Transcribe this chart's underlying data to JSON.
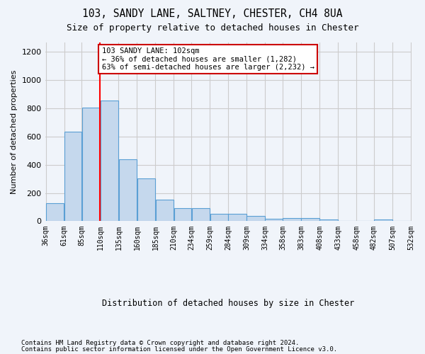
{
  "title": "103, SANDY LANE, SALTNEY, CHESTER, CH4 8UA",
  "subtitle": "Size of property relative to detached houses in Chester",
  "xlabel": "Distribution of detached houses by size in Chester",
  "ylabel": "Number of detached properties",
  "bar_color": "#c5d8ed",
  "bar_edge_color": "#5a9fd4",
  "background_color": "#f0f4fa",
  "grid_color": "#cccccc",
  "tick_labels": [
    "36sqm",
    "61sqm",
    "85sqm",
    "110sqm",
    "135sqm",
    "160sqm",
    "185sqm",
    "210sqm",
    "234sqm",
    "259sqm",
    "284sqm",
    "309sqm",
    "334sqm",
    "358sqm",
    "383sqm",
    "408sqm",
    "433sqm",
    "458sqm",
    "482sqm",
    "507sqm",
    "532sqm"
  ],
  "bar_lefts": [
    36,
    61,
    85,
    110,
    135,
    160,
    185,
    210,
    234,
    259,
    284,
    309,
    334,
    358,
    383,
    408,
    433,
    458,
    482,
    507
  ],
  "bar_widths": [
    25,
    24,
    25,
    25,
    25,
    25,
    25,
    24,
    25,
    25,
    25,
    25,
    24,
    25,
    25,
    25,
    25,
    24,
    25,
    25
  ],
  "bar_heights": [
    130,
    635,
    805,
    855,
    440,
    305,
    155,
    90,
    90,
    50,
    50,
    35,
    15,
    20,
    20,
    10,
    0,
    0,
    10,
    0
  ],
  "ylim": [
    0,
    1265
  ],
  "yticks": [
    0,
    200,
    400,
    600,
    800,
    1000,
    1200
  ],
  "red_line_x": 110,
  "annotation_text": "103 SANDY LANE: 102sqm\n← 36% of detached houses are smaller (1,282)\n63% of semi-detached houses are larger (2,232) →",
  "annotation_box_color": "#ffffff",
  "annotation_edge_color": "#cc0000",
  "footnote1": "Contains HM Land Registry data © Crown copyright and database right 2024.",
  "footnote2": "Contains public sector information licensed under the Open Government Licence v3.0."
}
